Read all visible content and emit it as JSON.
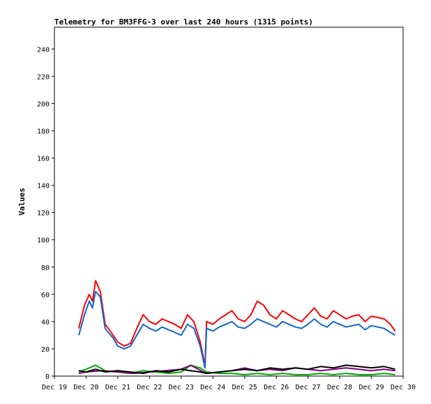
{
  "chart_data": {
    "type": "line",
    "title": "Telemetry for BM3FFG-3 over last 240 hours (1315 points)",
    "ylabel": "Values",
    "xlabel": "",
    "x_ticks": [
      "Dec 19",
      "Dec 20",
      "Dec 21",
      "Dec 22",
      "Dec 23",
      "Dec 24",
      "Dec 25",
      "Dec 26",
      "Dec 27",
      "Dec 28",
      "Dec 29",
      "Dec 30"
    ],
    "y_ticks": [
      0,
      20,
      40,
      60,
      80,
      100,
      120,
      140,
      160,
      180,
      200,
      220,
      240
    ],
    "xlim": [
      "Dec 19",
      "Dec 30"
    ],
    "ylim": [
      0,
      256
    ],
    "grid": false,
    "legend": "none",
    "series": [
      {
        "color": "#ff0000",
        "x_days": [
          0.77,
          0.95,
          1.1,
          1.2,
          1.3,
          1.45,
          1.6,
          1.7,
          1.85,
          2.0,
          2.2,
          2.4,
          2.6,
          2.8,
          3.0,
          3.2,
          3.4,
          3.6,
          3.8,
          4.0,
          4.2,
          4.4,
          4.6,
          4.75,
          4.8,
          5.0,
          5.2,
          5.4,
          5.6,
          5.8,
          6.0,
          6.2,
          6.4,
          6.6,
          6.8,
          7.0,
          7.2,
          7.4,
          7.6,
          7.8,
          8.0,
          8.2,
          8.4,
          8.6,
          8.8,
          9.0,
          9.2,
          9.4,
          9.6,
          9.8,
          10.0,
          10.2,
          10.4,
          10.6,
          10.75
        ],
        "values": [
          35,
          52,
          60,
          55,
          70,
          62,
          38,
          35,
          30,
          25,
          22,
          24,
          35,
          45,
          40,
          38,
          42,
          40,
          38,
          35,
          45,
          40,
          25,
          8,
          40,
          38,
          42,
          45,
          48,
          42,
          40,
          45,
          55,
          52,
          45,
          42,
          48,
          45,
          42,
          40,
          45,
          50,
          44,
          42,
          48,
          45,
          42,
          44,
          45,
          40,
          44,
          43,
          42,
          38,
          33
        ]
      },
      {
        "color": "#1166cc",
        "x_days": [
          0.77,
          0.95,
          1.1,
          1.2,
          1.3,
          1.45,
          1.6,
          1.7,
          1.85,
          2.0,
          2.2,
          2.4,
          2.6,
          2.8,
          3.0,
          3.2,
          3.4,
          3.6,
          3.8,
          4.0,
          4.2,
          4.4,
          4.6,
          4.75,
          4.8,
          5.0,
          5.2,
          5.4,
          5.6,
          5.8,
          6.0,
          6.2,
          6.4,
          6.6,
          6.8,
          7.0,
          7.2,
          7.4,
          7.6,
          7.8,
          8.0,
          8.2,
          8.4,
          8.6,
          8.8,
          9.0,
          9.2,
          9.4,
          9.6,
          9.8,
          10.0,
          10.2,
          10.4,
          10.6,
          10.75
        ],
        "values": [
          30,
          45,
          55,
          50,
          62,
          58,
          35,
          32,
          28,
          22,
          20,
          22,
          30,
          38,
          35,
          33,
          36,
          34,
          32,
          30,
          38,
          35,
          22,
          6,
          35,
          33,
          36,
          38,
          40,
          36,
          35,
          38,
          42,
          40,
          38,
          36,
          40,
          38,
          36,
          35,
          38,
          42,
          38,
          36,
          40,
          38,
          36,
          37,
          38,
          34,
          37,
          36,
          35,
          32,
          30
        ]
      },
      {
        "color": "#00aa00",
        "x_days": [
          0.77,
          1.0,
          1.3,
          1.6,
          2.0,
          2.4,
          2.8,
          3.2,
          3.6,
          4.0,
          4.3,
          4.6,
          4.8,
          5.2,
          5.6,
          6.0,
          6.4,
          6.8,
          7.2,
          7.6,
          8.0,
          8.4,
          8.8,
          9.2,
          9.6,
          10.0,
          10.4,
          10.75
        ],
        "values": [
          3,
          5,
          8,
          4,
          3,
          2,
          4,
          3,
          2,
          3,
          8,
          6,
          3,
          2,
          2,
          1,
          2,
          1,
          2,
          1,
          1,
          2,
          1,
          2,
          1,
          1,
          2,
          1
        ]
      },
      {
        "color": "#800080",
        "x_days": [
          0.77,
          1.0,
          1.5,
          2.0,
          2.5,
          3.0,
          3.5,
          4.0,
          4.3,
          4.7,
          4.8,
          5.2,
          5.6,
          6.0,
          6.4,
          6.8,
          7.2,
          7.6,
          8.0,
          8.4,
          8.8,
          9.2,
          9.6,
          10.0,
          10.4,
          10.75
        ],
        "values": [
          2,
          3,
          4,
          3,
          2,
          3,
          4,
          5,
          8,
          3,
          2,
          3,
          4,
          6,
          4,
          5,
          4,
          6,
          5,
          4,
          5,
          6,
          5,
          4,
          5,
          4
        ]
      },
      {
        "color": "#000000",
        "x_days": [
          0.77,
          1.0,
          1.3,
          1.6,
          2.0,
          2.4,
          2.8,
          3.2,
          3.6,
          4.0,
          4.3,
          4.6,
          4.8,
          5.2,
          5.6,
          6.0,
          6.4,
          6.8,
          7.2,
          7.6,
          8.0,
          8.4,
          8.8,
          9.2,
          9.6,
          10.0,
          10.4,
          10.75
        ],
        "values": [
          4,
          3,
          5,
          3,
          4,
          3,
          2,
          4,
          3,
          5,
          4,
          3,
          2,
          3,
          4,
          5,
          4,
          6,
          5,
          6,
          5,
          7,
          6,
          8,
          7,
          6,
          7,
          5
        ]
      }
    ]
  }
}
